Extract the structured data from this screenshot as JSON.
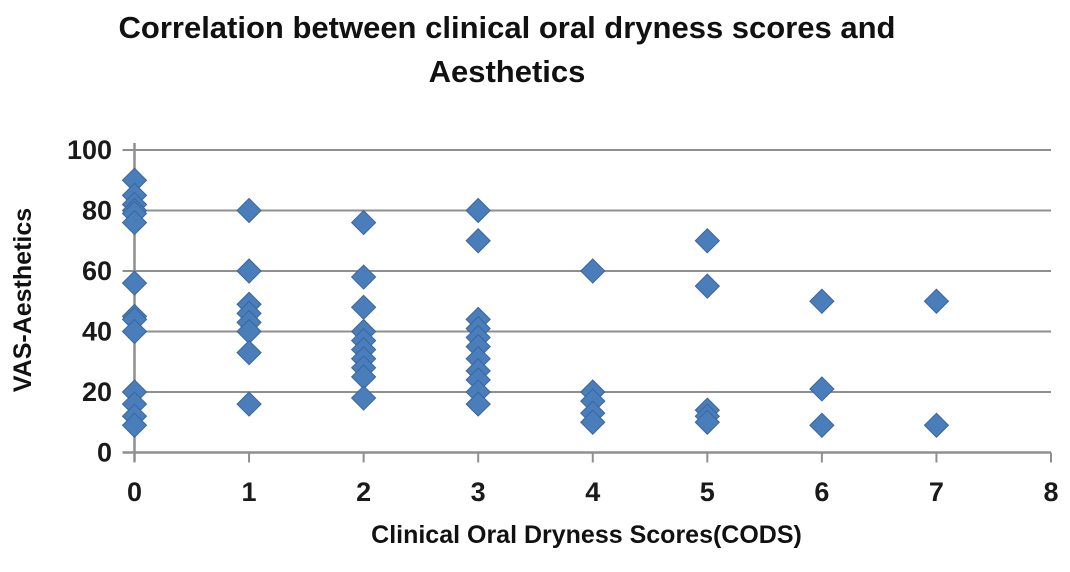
{
  "chart_data": {
    "type": "scatter",
    "title": "Correlation between clinical oral dryness scores and Aesthetics",
    "xlabel": "Clinical Oral Dryness Scores(CODS)",
    "ylabel": "VAS-Aesthetics",
    "xlim": [
      0,
      8
    ],
    "ylim": [
      0,
      100
    ],
    "x_ticks": [
      0,
      1,
      2,
      3,
      4,
      5,
      6,
      7,
      8
    ],
    "y_ticks": [
      0,
      20,
      40,
      60,
      80,
      100
    ],
    "grid": "horizontal",
    "legend": "none",
    "marker": "diamond",
    "marker_color": "#4a7ebb",
    "marker_edge_color": "#39669f",
    "gridline_color": "#8f8f8f",
    "text_color": "#1a1a1a",
    "points": [
      [
        0,
        90
      ],
      [
        0,
        85
      ],
      [
        0,
        82
      ],
      [
        0,
        80
      ],
      [
        0,
        79
      ],
      [
        0,
        76
      ],
      [
        0,
        56
      ],
      [
        0,
        45
      ],
      [
        0,
        44
      ],
      [
        0,
        40
      ],
      [
        0,
        20
      ],
      [
        0,
        16
      ],
      [
        0,
        12
      ],
      [
        0,
        9
      ],
      [
        1,
        80
      ],
      [
        1,
        60
      ],
      [
        1,
        49
      ],
      [
        1,
        46
      ],
      [
        1,
        43
      ],
      [
        1,
        40
      ],
      [
        1,
        33
      ],
      [
        1,
        16
      ],
      [
        2,
        76
      ],
      [
        2,
        58
      ],
      [
        2,
        48
      ],
      [
        2,
        40
      ],
      [
        2,
        37
      ],
      [
        2,
        34
      ],
      [
        2,
        31
      ],
      [
        2,
        28
      ],
      [
        2,
        25
      ],
      [
        2,
        18
      ],
      [
        3,
        80
      ],
      [
        3,
        70
      ],
      [
        3,
        44
      ],
      [
        3,
        41
      ],
      [
        3,
        38
      ],
      [
        3,
        35
      ],
      [
        3,
        31
      ],
      [
        3,
        27
      ],
      [
        3,
        24
      ],
      [
        3,
        20
      ],
      [
        3,
        16
      ],
      [
        4,
        60
      ],
      [
        4,
        20
      ],
      [
        4,
        17
      ],
      [
        4,
        13
      ],
      [
        4,
        10
      ],
      [
        5,
        70
      ],
      [
        5,
        55
      ],
      [
        5,
        14
      ],
      [
        5,
        12
      ],
      [
        5,
        10
      ],
      [
        6,
        50
      ],
      [
        6,
        21
      ],
      [
        6,
        9
      ],
      [
        7,
        50
      ],
      [
        7,
        9
      ]
    ]
  }
}
